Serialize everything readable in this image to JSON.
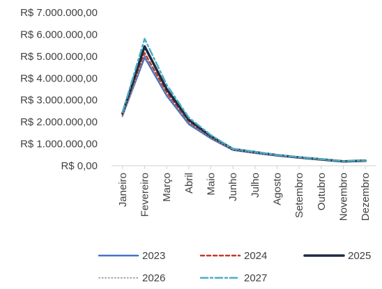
{
  "chart_data": {
    "type": "line",
    "title": "",
    "xlabel": "",
    "ylabel": "",
    "categories": [
      "Janeiro",
      "Fevereiro",
      "Março",
      "Abril",
      "Maio",
      "Junho",
      "Julho",
      "Agosto",
      "Setembro",
      "Outubro",
      "Novembro",
      "Dezembro"
    ],
    "y_ticks": [
      "R$ 0,00",
      "R$ 1.000.000,00",
      "R$ 2.000.000,00",
      "R$ 3.000.000,00",
      "R$ 4.000.000,00",
      "R$ 5.000.000,00",
      "R$ 6.000.000,00",
      "R$ 7.000.000,00"
    ],
    "ylim": [
      0,
      7000000
    ],
    "grid": false,
    "legend_position": "bottom",
    "series": [
      {
        "name": "2023",
        "color": "#4472c4",
        "dash": "solid",
        "values": [
          2300000,
          4950000,
          3200000,
          1900000,
          1250000,
          720000,
          580000,
          460000,
          360000,
          270000,
          190000,
          220000
        ]
      },
      {
        "name": "2024",
        "color": "#c0392b",
        "dash": "dashed",
        "values": [
          2350000,
          5150000,
          3350000,
          2000000,
          1300000,
          740000,
          600000,
          470000,
          370000,
          280000,
          195000,
          225000
        ]
      },
      {
        "name": "2025",
        "color": "#1b2a41",
        "dash": "solid-bold",
        "values": [
          2400000,
          5450000,
          3500000,
          2100000,
          1350000,
          760000,
          620000,
          480000,
          380000,
          290000,
          200000,
          230000
        ]
      },
      {
        "name": "2026",
        "color": "#8a8a8a",
        "dash": "dotted",
        "values": [
          2250000,
          5050000,
          3250000,
          1950000,
          1280000,
          730000,
          590000,
          465000,
          365000,
          275000,
          192000,
          222000
        ]
      },
      {
        "name": "2027",
        "color": "#4bacc6",
        "dash": "dashdot",
        "values": [
          2450000,
          5800000,
          3700000,
          2200000,
          1400000,
          780000,
          640000,
          490000,
          390000,
          300000,
          205000,
          235000
        ]
      }
    ]
  }
}
